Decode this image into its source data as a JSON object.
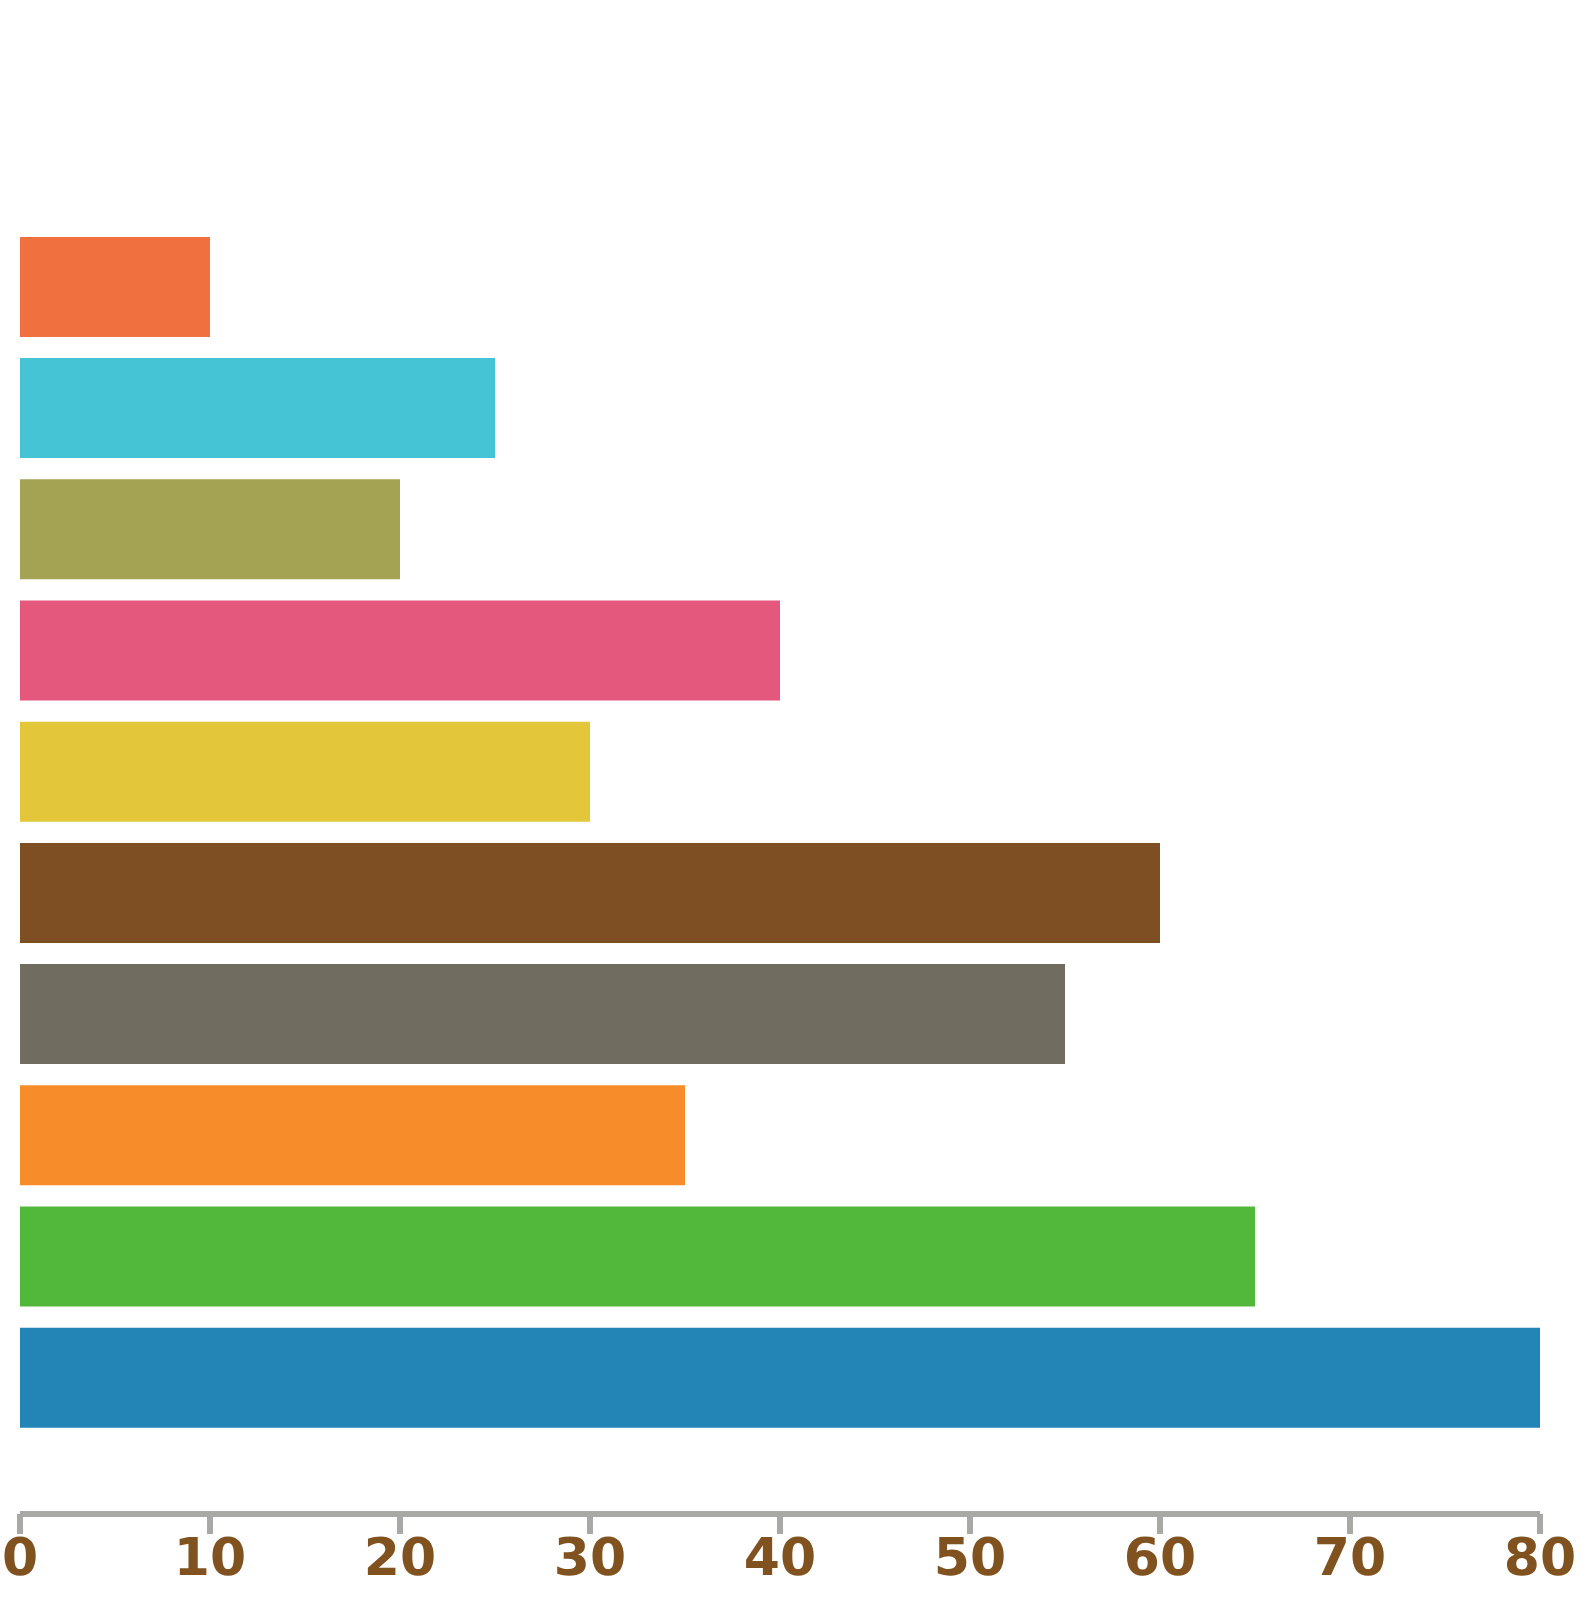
{
  "chart_data": {
    "type": "bar",
    "orientation": "horizontal",
    "categories": [
      null,
      null,
      null,
      null,
      null,
      null,
      null,
      null,
      null,
      null
    ],
    "values": [
      10,
      25,
      20,
      40,
      30,
      60,
      55,
      35,
      65,
      80
    ],
    "colors": [
      "#f07040",
      "#44c4d4",
      "#a3a353",
      "#e5587e",
      "#e4c63a",
      "#7d4f22",
      "#706c60",
      "#f78c2a",
      "#52b83c",
      "#2385b6"
    ],
    "xlim": [
      0,
      80
    ],
    "xticks": [
      0,
      10,
      20,
      30,
      40,
      50,
      60,
      70,
      80
    ]
  }
}
